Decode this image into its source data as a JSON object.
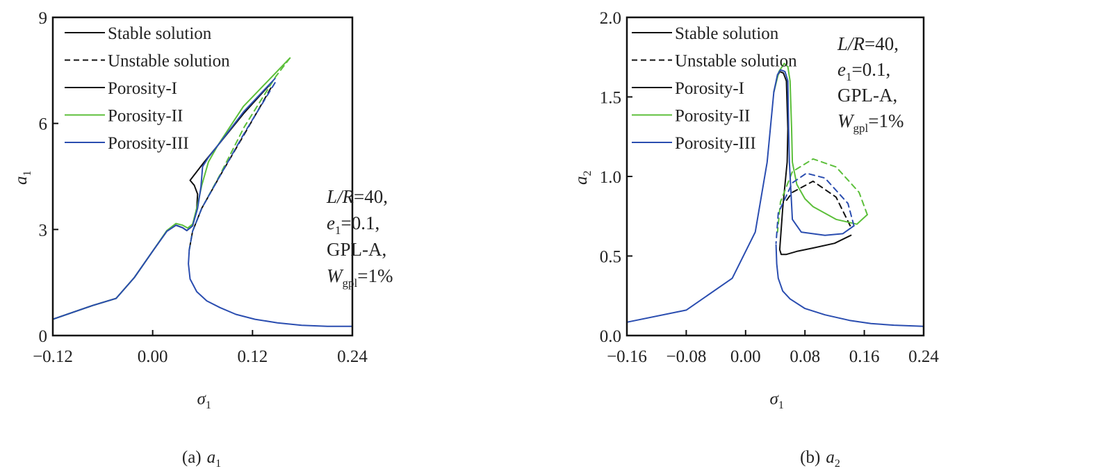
{
  "chart_data": [
    {
      "type": "line",
      "id": "a",
      "caption": {
        "label": "(a)",
        "var": "a",
        "sub": "1"
      },
      "xlabel": {
        "var": "σ",
        "sub": "1"
      },
      "ylabel": {
        "var": "a",
        "sub": "1"
      },
      "xlim": [
        -0.12,
        0.24
      ],
      "ylim": [
        0,
        9
      ],
      "xticks": [
        {
          "v": -0.12,
          "label": "−0.12"
        },
        {
          "v": 0.0,
          "label": "0.00"
        },
        {
          "v": 0.12,
          "label": "0.12"
        },
        {
          "v": 0.24,
          "label": "0.24"
        }
      ],
      "yticks": [
        {
          "v": 0,
          "label": "0"
        },
        {
          "v": 3,
          "label": "3"
        },
        {
          "v": 6,
          "label": "6"
        },
        {
          "v": 9,
          "label": "9"
        }
      ],
      "legend": {
        "placement": "top-left",
        "entries": [
          {
            "label": "Stable solution",
            "color": "#111111",
            "dash": false
          },
          {
            "label": "Unstable solution",
            "color": "#111111",
            "dash": true
          },
          {
            "label": "Porosity-I",
            "color": "#111111",
            "dash": false
          },
          {
            "label": "Porosity-II",
            "color": "#5cbf3a",
            "dash": false
          },
          {
            "label": "Porosity-III",
            "color": "#2a4db0",
            "dash": false
          }
        ]
      },
      "annotation": {
        "placement": "middle-right",
        "lines": [
          {
            "a": "L/R",
            "b": "=40,",
            "sub": ""
          },
          {
            "a": "e",
            "sub": "1",
            "b": "=0.1,"
          },
          {
            "a": "",
            "sub": "",
            "b": "GPL-A,"
          },
          {
            "a": "W",
            "sub": "gpl",
            "b": "=1%"
          }
        ]
      },
      "series": [
        {
          "name": "Porosity-I stable",
          "color": "#111111",
          "dash": false,
          "x": [
            -0.12,
            -0.072,
            -0.044,
            -0.022,
            0.001,
            0.017,
            0.028,
            0.036,
            0.041,
            0.048,
            0.053,
            0.054,
            0.05,
            0.045,
            0.062,
            0.078,
            0.11,
            0.142
          ],
          "y": [
            0.46,
            0.85,
            1.05,
            1.64,
            2.42,
            2.95,
            3.12,
            3.05,
            2.97,
            3.1,
            3.6,
            4.0,
            4.25,
            4.39,
            4.91,
            5.37,
            6.3,
            7.13
          ]
        },
        {
          "name": "Porosity-I unstable",
          "color": "#111111",
          "dash": true,
          "x": [
            0.142,
            0.11,
            0.081,
            0.059,
            0.048,
            0.044
          ],
          "y": [
            7.0,
            5.69,
            4.52,
            3.6,
            2.95,
            2.42
          ]
        },
        {
          "name": "Porosity-II stable",
          "color": "#5cbf3a",
          "dash": false,
          "x": [
            -0.12,
            -0.072,
            -0.044,
            -0.022,
            0.001,
            0.017,
            0.028,
            0.036,
            0.042,
            0.048,
            0.053,
            0.059,
            0.067,
            0.078,
            0.109,
            0.165
          ],
          "y": [
            0.46,
            0.85,
            1.05,
            1.64,
            2.42,
            2.97,
            3.17,
            3.12,
            3.04,
            3.15,
            3.6,
            4.25,
            4.91,
            5.37,
            6.48,
            7.85
          ]
        },
        {
          "name": "Porosity-II unstable",
          "color": "#5cbf3a",
          "dash": true,
          "x": [
            0.165,
            0.148,
            0.11,
            0.081,
            0.059,
            0.048,
            0.044
          ],
          "y": [
            7.85,
            7.33,
            5.9,
            4.55,
            3.6,
            2.95,
            2.42
          ]
        },
        {
          "name": "Porosity-III stable",
          "color": "#2a4db0",
          "dash": false,
          "x": [
            -0.12,
            -0.072,
            -0.044,
            -0.022,
            0.001,
            0.017,
            0.028,
            0.036,
            0.041,
            0.048,
            0.054,
            0.058,
            0.06,
            0.067,
            0.078,
            0.11,
            0.147
          ],
          "y": [
            0.46,
            0.85,
            1.05,
            1.64,
            2.42,
            2.95,
            3.12,
            3.05,
            2.97,
            3.1,
            3.6,
            4.2,
            4.78,
            5.04,
            5.37,
            6.35,
            7.27
          ]
        },
        {
          "name": "Porosity-III unstable",
          "color": "#2a4db0",
          "dash": true,
          "x": [
            0.147,
            0.11,
            0.081,
            0.059,
            0.048,
            0.044
          ],
          "y": [
            7.15,
            5.72,
            4.52,
            3.6,
            2.95,
            2.42
          ]
        },
        {
          "name": "Lower stable branch",
          "color": "#2a4db0",
          "dash": false,
          "x": [
            0.044,
            0.043,
            0.045,
            0.053,
            0.065,
            0.081,
            0.1,
            0.123,
            0.15,
            0.179,
            0.21,
            0.24
          ],
          "y": [
            2.42,
            2.03,
            1.6,
            1.24,
            0.98,
            0.79,
            0.6,
            0.46,
            0.36,
            0.29,
            0.26,
            0.26
          ]
        }
      ]
    },
    {
      "type": "line",
      "id": "b",
      "caption": {
        "label": "(b)",
        "var": "a",
        "sub": "2"
      },
      "xlabel": {
        "var": "σ",
        "sub": "1"
      },
      "ylabel": {
        "var": "a",
        "sub": "2"
      },
      "xlim": [
        -0.16,
        0.24
      ],
      "ylim": [
        0,
        2.0
      ],
      "xticks": [
        {
          "v": -0.16,
          "label": "−0.16"
        },
        {
          "v": -0.08,
          "label": "−0.08"
        },
        {
          "v": 0.0,
          "label": "0.00"
        },
        {
          "v": 0.08,
          "label": "0.08"
        },
        {
          "v": 0.16,
          "label": "0.16"
        },
        {
          "v": 0.24,
          "label": "0.24"
        }
      ],
      "yticks": [
        {
          "v": 0,
          "label": "0.0"
        },
        {
          "v": 0.5,
          "label": "0.5"
        },
        {
          "v": 1.0,
          "label": "1.0"
        },
        {
          "v": 1.5,
          "label": "1.5"
        },
        {
          "v": 2.0,
          "label": "2.0"
        }
      ],
      "legend": {
        "placement": "top-left",
        "entries": [
          {
            "label": "Stable solution",
            "color": "#111111",
            "dash": false
          },
          {
            "label": "Unstable solution",
            "color": "#111111",
            "dash": true
          },
          {
            "label": "Porosity-I",
            "color": "#111111",
            "dash": false
          },
          {
            "label": "Porosity-II",
            "color": "#5cbf3a",
            "dash": false
          },
          {
            "label": "Porosity-III",
            "color": "#2a4db0",
            "dash": false
          }
        ]
      },
      "annotation": {
        "placement": "top-right",
        "lines": [
          {
            "a": "L/R",
            "b": "=40,",
            "sub": ""
          },
          {
            "a": "e",
            "sub": "1",
            "b": "=0.1,"
          },
          {
            "a": "",
            "sub": "",
            "b": "GPL-A,"
          },
          {
            "a": "W",
            "sub": "gpl",
            "b": "=1%"
          }
        ]
      },
      "series": [
        {
          "name": "Porosity-I stable",
          "color": "#111111",
          "dash": false,
          "x": [
            0.038,
            0.043,
            0.046,
            0.051,
            0.055,
            0.057,
            0.056,
            0.05,
            0.046,
            0.048,
            0.055,
            0.07,
            0.091,
            0.12,
            0.142
          ],
          "y": [
            1.53,
            1.63,
            1.66,
            1.65,
            1.6,
            1.3,
            1.09,
            0.8,
            0.54,
            0.51,
            0.51,
            0.53,
            0.55,
            0.58,
            0.63
          ]
        },
        {
          "name": "Porosity-I unstable",
          "color": "#111111",
          "dash": true,
          "x": [
            0.141,
            0.122,
            0.091,
            0.063,
            0.052
          ],
          "y": [
            0.69,
            0.87,
            0.97,
            0.9,
            0.83
          ]
        },
        {
          "name": "Porosity-II stable",
          "color": "#5cbf3a",
          "dash": false,
          "x": [
            0.038,
            0.045,
            0.052,
            0.057,
            0.06,
            0.062,
            0.063,
            0.069,
            0.08,
            0.091,
            0.122,
            0.15,
            0.164
          ],
          "y": [
            1.53,
            1.66,
            1.71,
            1.69,
            1.6,
            1.3,
            1.09,
            0.95,
            0.86,
            0.81,
            0.73,
            0.7,
            0.76
          ]
        },
        {
          "name": "Porosity-II unstable",
          "color": "#5cbf3a",
          "dash": true,
          "x": [
            0.164,
            0.153,
            0.122,
            0.091,
            0.063,
            0.047,
            0.043
          ],
          "y": [
            0.76,
            0.9,
            1.06,
            1.11,
            1.03,
            0.84,
            0.65
          ]
        },
        {
          "name": "Porosity-III stable",
          "color": "#2a4db0",
          "dash": false,
          "x": [
            -0.16,
            -0.08,
            -0.018,
            0.013,
            0.029,
            0.038,
            0.043,
            0.047,
            0.053,
            0.057,
            0.058,
            0.059,
            0.063,
            0.075,
            0.107,
            0.131,
            0.146
          ],
          "y": [
            0.084,
            0.16,
            0.36,
            0.65,
            1.09,
            1.53,
            1.64,
            1.67,
            1.66,
            1.6,
            1.3,
            1.09,
            0.73,
            0.65,
            0.63,
            0.64,
            0.69
          ]
        },
        {
          "name": "Porosity-III unstable",
          "color": "#2a4db0",
          "dash": true,
          "x": [
            0.146,
            0.138,
            0.107,
            0.082,
            0.063,
            0.044,
            0.041
          ],
          "y": [
            0.69,
            0.83,
            0.99,
            1.02,
            0.96,
            0.77,
            0.58
          ]
        },
        {
          "name": "Lower stable branch",
          "color": "#2a4db0",
          "dash": false,
          "x": [
            0.041,
            0.042,
            0.044,
            0.05,
            0.06,
            0.08,
            0.107,
            0.14,
            0.169,
            0.2,
            0.24
          ],
          "y": [
            0.57,
            0.45,
            0.36,
            0.28,
            0.23,
            0.17,
            0.13,
            0.095,
            0.075,
            0.065,
            0.058
          ]
        }
      ]
    }
  ]
}
